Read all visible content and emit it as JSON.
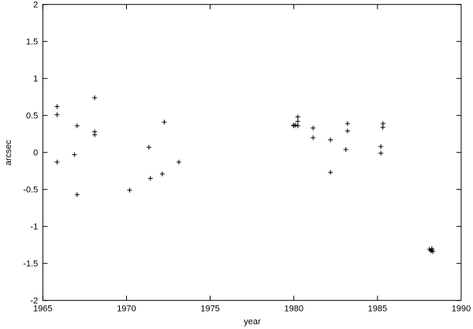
{
  "chart_data": {
    "type": "scatter",
    "title": "",
    "xlabel": "year",
    "ylabel": "arcsec",
    "xlim": [
      1965,
      1990
    ],
    "ylim": [
      -2,
      2
    ],
    "xticks": [
      "1965",
      "1970",
      "1975",
      "1980",
      "1985",
      "1990"
    ],
    "yticks": [
      "-2",
      "-1.5",
      "-1",
      "-0.5",
      "0",
      "0.5",
      "1",
      "1.5",
      "2"
    ],
    "grid": false,
    "marker": "plus",
    "color": "#000000",
    "points": [
      [
        1965.85,
        0.62
      ],
      [
        1965.85,
        0.51
      ],
      [
        1965.85,
        -0.13
      ],
      [
        1966.89,
        -0.03
      ],
      [
        1967.05,
        0.36
      ],
      [
        1967.05,
        -0.57
      ],
      [
        1968.1,
        0.74
      ],
      [
        1968.1,
        0.28
      ],
      [
        1968.1,
        0.24
      ],
      [
        1970.19,
        -0.51
      ],
      [
        1971.34,
        0.07
      ],
      [
        1971.43,
        -0.35
      ],
      [
        1972.14,
        -0.29
      ],
      [
        1972.26,
        0.41
      ],
      [
        1973.13,
        -0.13
      ],
      [
        1979.99,
        0.37
      ],
      [
        1980.0,
        0.36
      ],
      [
        1980.1,
        0.37
      ],
      [
        1980.24,
        0.48
      ],
      [
        1980.24,
        0.42
      ],
      [
        1980.24,
        0.36
      ],
      [
        1981.15,
        0.33
      ],
      [
        1981.15,
        0.2
      ],
      [
        1982.19,
        0.17
      ],
      [
        1982.19,
        -0.27
      ],
      [
        1983.21,
        0.39
      ],
      [
        1983.21,
        0.29
      ],
      [
        1983.11,
        0.04
      ],
      [
        1985.33,
        0.39
      ],
      [
        1985.32,
        0.34
      ],
      [
        1985.2,
        0.08
      ],
      [
        1985.2,
        -0.01
      ],
      [
        1988.1,
        -1.31
      ],
      [
        1988.2,
        -1.33
      ],
      [
        1988.25,
        -1.32
      ],
      [
        1988.3,
        -1.34
      ],
      [
        1988.25,
        -1.3
      ]
    ]
  }
}
